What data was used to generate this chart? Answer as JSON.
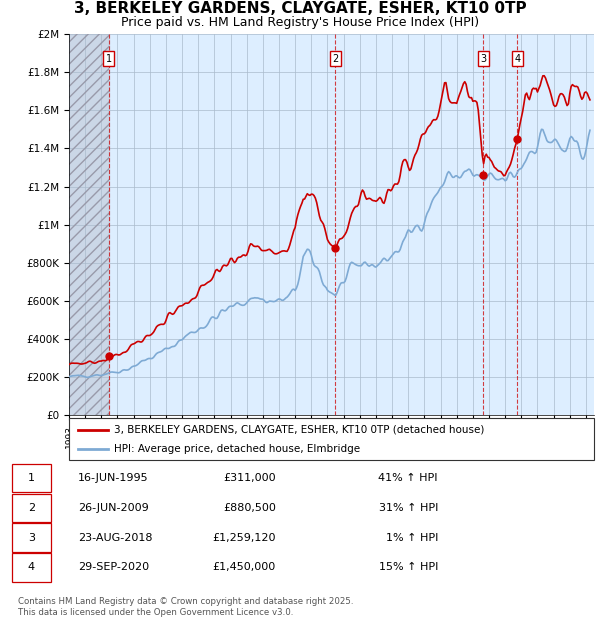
{
  "title": "3, BERKELEY GARDENS, CLAYGATE, ESHER, KT10 0TP",
  "subtitle": "Price paid vs. HM Land Registry's House Price Index (HPI)",
  "title_fontsize": 11,
  "subtitle_fontsize": 9,
  "hpi_color": "#7eaad4",
  "price_color": "#cc0000",
  "background_color": "#ddeeff",
  "grid_color": "#aabbcc",
  "ylim": [
    0,
    2000000
  ],
  "yticks": [
    0,
    200000,
    400000,
    600000,
    800000,
    1000000,
    1200000,
    1400000,
    1600000,
    1800000,
    2000000
  ],
  "ytick_labels": [
    "£0",
    "£200K",
    "£400K",
    "£600K",
    "£800K",
    "£1M",
    "£1.2M",
    "£1.4M",
    "£1.6M",
    "£1.8M",
    "£2M"
  ],
  "xlim_start": 1993.0,
  "xlim_end": 2025.5,
  "sales": [
    {
      "label": "1",
      "date": 1995.46,
      "price": 311000
    },
    {
      "label": "2",
      "date": 2009.49,
      "price": 880500
    },
    {
      "label": "3",
      "date": 2018.64,
      "price": 1259120
    },
    {
      "label": "4",
      "date": 2020.75,
      "price": 1450000
    }
  ],
  "table_rows": [
    [
      "1",
      "16-JUN-1995",
      "£311,000",
      "41% ↑ HPI"
    ],
    [
      "2",
      "26-JUN-2009",
      "£880,500",
      "31% ↑ HPI"
    ],
    [
      "3",
      "23-AUG-2018",
      "£1,259,120",
      "1% ↑ HPI"
    ],
    [
      "4",
      "29-SEP-2020",
      "£1,450,000",
      "15% ↑ HPI"
    ]
  ],
  "legend_line1": "3, BERKELEY GARDENS, CLAYGATE, ESHER, KT10 0TP (detached house)",
  "legend_line2": "HPI: Average price, detached house, Elmbridge",
  "footnote": "Contains HM Land Registry data © Crown copyright and database right 2025.\nThis data is licensed under the Open Government Licence v3.0."
}
